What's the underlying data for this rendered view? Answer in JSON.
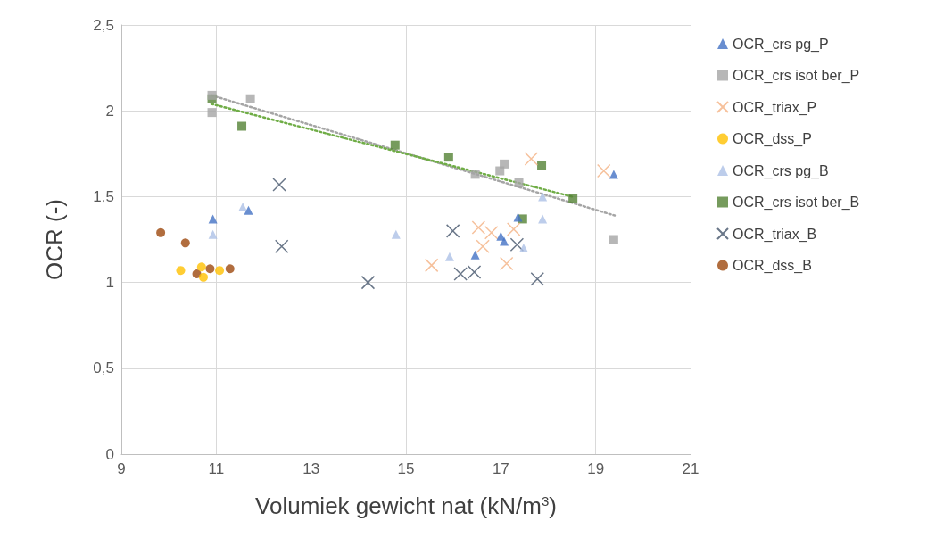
{
  "chart_data": {
    "type": "scatter",
    "xlabel": "Volumiek gewicht nat (kN/m$^{3}$)",
    "ylabel": "OCR (-)",
    "xlim": [
      9,
      21
    ],
    "xticks": [
      9,
      11,
      13,
      15,
      17,
      19,
      21
    ],
    "ylim": [
      0,
      2.5
    ],
    "yticks": [
      0,
      {
        "value": 0.5,
        "label": "0,5"
      },
      1,
      {
        "value": 1.5,
        "label": "1,5"
      },
      2,
      {
        "value": 2.5,
        "label": "2,5"
      }
    ],
    "grid": true,
    "legend": "right",
    "series": [
      {
        "name": "OCR_crs pg_P",
        "color": "#4472c4",
        "marker": "triangle",
        "x": [
          10.93,
          11.68,
          16.46,
          17.0,
          17.07,
          17.36,
          19.38
        ],
        "values": [
          1.37,
          1.42,
          1.16,
          1.27,
          1.24,
          1.38,
          1.63
        ]
      },
      {
        "name": "OCR_crs isot ber_P",
        "color": "#a5a5a5",
        "marker": "square",
        "x": [
          10.91,
          10.91,
          11.72,
          16.46,
          16.98,
          17.07,
          17.38,
          19.38
        ],
        "values": [
          2.09,
          1.99,
          2.07,
          1.63,
          1.65,
          1.69,
          1.58,
          1.25
        ]
      },
      {
        "name": "OCR_triax_P",
        "color": "#f4b183",
        "marker": "cross",
        "x": [
          15.54,
          16.53,
          16.62,
          16.8,
          17.27,
          17.12,
          17.64,
          19.17
        ],
        "values": [
          1.1,
          1.32,
          1.21,
          1.29,
          1.31,
          1.11,
          1.72,
          1.65
        ]
      },
      {
        "name": "OCR_dss_P",
        "color": "#ffc000",
        "marker": "circle",
        "x": [
          10.25,
          10.69,
          10.73,
          11.07
        ],
        "values": [
          1.07,
          1.09,
          1.03,
          1.07
        ]
      },
      {
        "name": "OCR_crs pg_B",
        "color": "#adc1e6",
        "marker": "triangle",
        "x": [
          11.56,
          10.93,
          14.79,
          15.92,
          17.88,
          17.88,
          17.48
        ],
        "values": [
          1.44,
          1.28,
          1.28,
          1.15,
          1.5,
          1.37,
          1.2
        ]
      },
      {
        "name": "OCR_crs isot ber_B",
        "color": "#548235",
        "marker": "square",
        "x": [
          10.91,
          11.54,
          14.77,
          15.9,
          17.86,
          18.52,
          17.46
        ],
        "values": [
          2.07,
          1.91,
          1.8,
          1.73,
          1.68,
          1.49,
          1.37
        ]
      },
      {
        "name": "OCR_triax_B",
        "color": "#44546a",
        "marker": "cross",
        "x": [
          12.33,
          12.38,
          14.2,
          15.99,
          16.15,
          16.44,
          17.34,
          17.77
        ],
        "values": [
          1.57,
          1.21,
          1.0,
          1.3,
          1.05,
          1.06,
          1.22,
          1.02
        ]
      },
      {
        "name": "OCR_dss_B",
        "color": "#9e480e",
        "marker": "circle",
        "x": [
          9.83,
          10.35,
          10.59,
          10.87,
          11.29
        ],
        "values": [
          1.29,
          1.23,
          1.05,
          1.08,
          1.08
        ]
      },
      {
        "type": "line",
        "color": "#a5a5a5",
        "line_style": "dotted",
        "marker": "none",
        "x": [
          10.9,
          19.4
        ],
        "values": [
          2.09,
          1.39
        ]
      },
      {
        "type": "line",
        "color": "#70ad47",
        "line_style": "dotted",
        "marker": "none",
        "x": [
          10.9,
          18.5
        ],
        "values": [
          2.04,
          1.5
        ]
      }
    ]
  }
}
